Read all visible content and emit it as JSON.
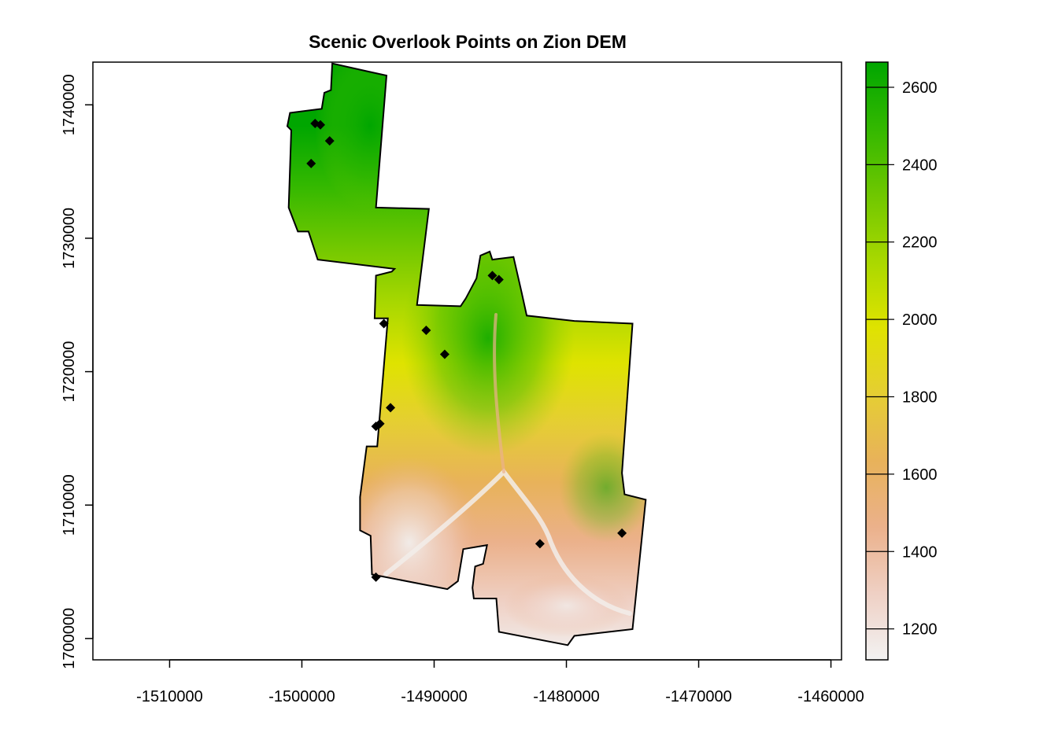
{
  "chart_data": {
    "type": "scatter",
    "title": "Scenic Overlook Points on Zion DEM",
    "xlabel": "",
    "ylabel": "",
    "xlim": [
      -1515800,
      -1459200
    ],
    "ylim": [
      1698400,
      1743200
    ],
    "xticks": [
      -1510000,
      -1500000,
      -1490000,
      -1480000,
      -1470000,
      -1460000
    ],
    "yticks": [
      1700000,
      1710000,
      1720000,
      1730000,
      1740000
    ],
    "xtick_labels": [
      "-1510000",
      "-1500000",
      "-1490000",
      "-1480000",
      "-1470000",
      "-1460000"
    ],
    "ytick_labels": [
      "1700000",
      "1710000",
      "1720000",
      "1730000",
      "1740000"
    ],
    "grid": false,
    "raster": {
      "name": "Zion DEM",
      "value_range": [
        1120,
        2665
      ],
      "colorbar_ticks": [
        1200,
        1400,
        1600,
        1800,
        2000,
        2200,
        2400,
        2600
      ],
      "colorbar_tick_labels": [
        "1200",
        "1400",
        "1600",
        "1800",
        "2000",
        "2200",
        "2400",
        "2600"
      ],
      "palette": [
        "#F2F2F2",
        "#EFD0C4",
        "#EBB18B",
        "#E8B25A",
        "#E5CE33",
        "#DFE300",
        "#A9D800",
        "#6FC700",
        "#33B800",
        "#00A600"
      ]
    },
    "boundary": [
      [
        -1497700,
        1743100
      ],
      [
        -1495000,
        1742500
      ],
      [
        -1493600,
        1742200
      ],
      [
        -1494400,
        1732300
      ],
      [
        -1490400,
        1732200
      ],
      [
        -1491300,
        1725000
      ],
      [
        -1488000,
        1724900
      ],
      [
        -1487600,
        1725500
      ],
      [
        -1486800,
        1727000
      ],
      [
        -1486500,
        1728700
      ],
      [
        -1485800,
        1729000
      ],
      [
        -1485600,
        1728400
      ],
      [
        -1484000,
        1728600
      ],
      [
        -1483400,
        1726000
      ],
      [
        -1483000,
        1724200
      ],
      [
        -1479400,
        1723800
      ],
      [
        -1475000,
        1723600
      ],
      [
        -1475800,
        1712400
      ],
      [
        -1475600,
        1710800
      ],
      [
        -1474000,
        1710400
      ],
      [
        -1475000,
        1700700
      ],
      [
        -1479400,
        1700200
      ],
      [
        -1479900,
        1699500
      ],
      [
        -1485100,
        1700500
      ],
      [
        -1485300,
        1703000
      ],
      [
        -1487000,
        1703000
      ],
      [
        -1487100,
        1703800
      ],
      [
        -1486900,
        1705400
      ],
      [
        -1486300,
        1705600
      ],
      [
        -1486000,
        1707000
      ],
      [
        -1487800,
        1706700
      ],
      [
        -1488200,
        1704300
      ],
      [
        -1489000,
        1703700
      ],
      [
        -1494700,
        1704800
      ],
      [
        -1494800,
        1707700
      ],
      [
        -1495600,
        1708100
      ],
      [
        -1495600,
        1710600
      ],
      [
        -1495100,
        1714400
      ],
      [
        -1494300,
        1714400
      ],
      [
        -1493500,
        1724000
      ],
      [
        -1494500,
        1724000
      ],
      [
        -1494400,
        1727200
      ],
      [
        -1493200,
        1727500
      ],
      [
        -1493000,
        1727700
      ],
      [
        -1498800,
        1728400
      ],
      [
        -1499500,
        1730500
      ],
      [
        -1500300,
        1730500
      ],
      [
        -1501000,
        1732300
      ],
      [
        -1500800,
        1738100
      ],
      [
        -1501100,
        1738400
      ],
      [
        -1500900,
        1739400
      ],
      [
        -1498500,
        1739700
      ],
      [
        -1498300,
        1740900
      ],
      [
        -1497800,
        1741100
      ]
    ],
    "points": [
      {
        "x": -1499000,
        "y": 1738600
      },
      {
        "x": -1498600,
        "y": 1738500
      },
      {
        "x": -1497900,
        "y": 1737300
      },
      {
        "x": -1499300,
        "y": 1735600
      },
      {
        "x": -1485600,
        "y": 1727200
      },
      {
        "x": -1485100,
        "y": 1726900
      },
      {
        "x": -1493800,
        "y": 1723600
      },
      {
        "x": -1490600,
        "y": 1723100
      },
      {
        "x": -1489200,
        "y": 1721300
      },
      {
        "x": -1493300,
        "y": 1717300
      },
      {
        "x": -1494100,
        "y": 1716100
      },
      {
        "x": -1494400,
        "y": 1715900
      },
      {
        "x": -1482000,
        "y": 1707100
      },
      {
        "x": -1475800,
        "y": 1707900
      },
      {
        "x": -1494400,
        "y": 1704600
      }
    ]
  }
}
